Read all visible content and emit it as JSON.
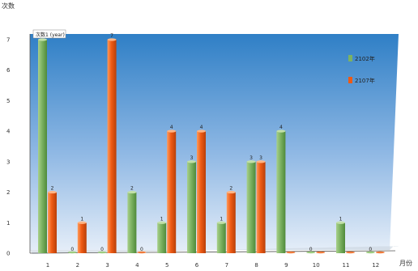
{
  "chart_data": {
    "type": "bar",
    "title": "",
    "ylabel": "次数",
    "xlabel": "月份",
    "categories": [
      "1",
      "2",
      "3",
      "4",
      "5",
      "6",
      "7",
      "8",
      "9",
      "10",
      "11",
      "12"
    ],
    "yticks": [
      "0",
      "1",
      "2",
      "3",
      "4",
      "5",
      "6",
      "7"
    ],
    "ylim": [
      0,
      7
    ],
    "legend_position": "right",
    "series": [
      {
        "name": "2102年",
        "color": "#7cb262",
        "values": [
          7,
          0,
          0,
          2,
          1,
          3,
          1,
          3,
          4,
          0,
          1,
          0
        ],
        "labels": [
          "7",
          "0",
          "0",
          "2",
          "1",
          "3",
          "1",
          "3",
          "4",
          "0",
          "1",
          "0"
        ]
      },
      {
        "name": "2107年",
        "color": "#ee5a14",
        "values": [
          2,
          1,
          7,
          0,
          4,
          4,
          2,
          3,
          0,
          0,
          0,
          0
        ],
        "labels": [
          "2",
          "1",
          "7",
          "0",
          "4",
          "4",
          "2",
          "3",
          "",
          "",
          "",
          ""
        ]
      }
    ],
    "annotation": "次数1 (year)"
  }
}
